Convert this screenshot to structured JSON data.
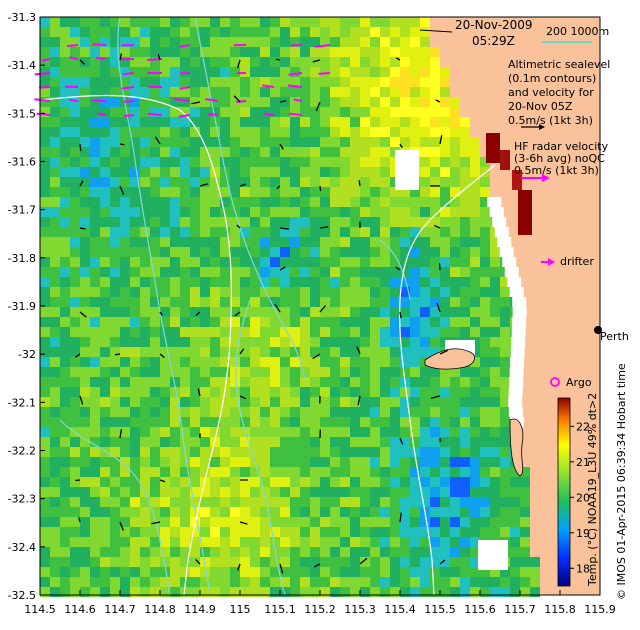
{
  "map": {
    "date_line": "20-Nov-2009",
    "time_line": "05:29Z",
    "scale_bar_label": "200  1000m",
    "altimetry_lines": [
      "Altimetric sealevel",
      "(0.1m contours)",
      "and velocity for",
      "20-Nov 05Z",
      "0.5m/s (1kt 3h)"
    ],
    "hf_radar_lines": [
      "HF radar velocity",
      "(3-6h avg) noQC",
      "0.5m/s (1kt 3h)"
    ],
    "drifter_label": "drifter",
    "place_label": "Perth",
    "argo_label": "Argo",
    "credit": "© IMOS 01-Apr-2015 06:39:34 Hobart time",
    "colorbar_title": "Temp. (°C) NOAA19_L3U 49% dt>2",
    "colorbar_ticks": [
      "18",
      "19",
      "20",
      "21",
      "22"
    ],
    "x_ticks": [
      "114.5",
      "114.6",
      "114.7",
      "114.8",
      "114.9",
      "115",
      "115.1",
      "115.2",
      "115.3",
      "115.4",
      "115.5",
      "115.6",
      "115.7",
      "115.8",
      "115.9"
    ],
    "y_ticks": [
      "-31.3",
      "-31.4",
      "-31.5",
      "-31.6",
      "-31.7",
      "-31.8",
      "-31.9",
      "-32",
      "-32.1",
      "-32.2",
      "-32.3",
      "-32.4",
      "-32.5"
    ],
    "colors": {
      "land": "#f9c29a",
      "no_data": "#ffffff",
      "radar_arrow": "#ff00ff",
      "altimetry_arrow": "#000000",
      "contour": "#7fd8e0",
      "isobath": "#ffffff"
    },
    "colorbar_range": [
      17.5,
      22.8
    ]
  }
}
